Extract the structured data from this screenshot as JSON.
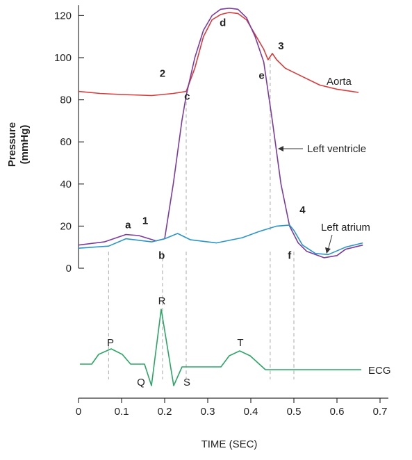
{
  "chart_data": {
    "type": "line",
    "ylabel_line1": "Pressure",
    "ylabel_line2": "(mmHg)",
    "xlabel": "TIME (SEC)",
    "xlim": [
      0,
      0.7
    ],
    "ylim": [
      0,
      120
    ],
    "x_ticks": [
      "0",
      "0.1",
      "0.2",
      "0.3",
      "0.4",
      "0.5",
      "0.6",
      "0.7"
    ],
    "y_ticks": [
      "0",
      "20",
      "40",
      "60",
      "80",
      "100",
      "120"
    ],
    "colors": {
      "aorta": "#d93a3a",
      "ventricle": "#7b3aa0",
      "atrium": "#2a95c8",
      "ecg": "#2aa566",
      "dash": "#b0b0b0"
    },
    "series": [
      {
        "name": "Aorta",
        "x": [
          0.0,
          0.05,
          0.1,
          0.17,
          0.22,
          0.25,
          0.27,
          0.29,
          0.31,
          0.33,
          0.35,
          0.37,
          0.39,
          0.41,
          0.43,
          0.44,
          0.45,
          0.46,
          0.48,
          0.52,
          0.56,
          0.6,
          0.65
        ],
        "y": [
          84,
          83,
          82.5,
          82,
          83,
          84,
          95,
          110,
          118,
          120.5,
          121.5,
          121,
          118,
          111,
          104,
          99,
          102,
          99,
          95,
          91,
          87,
          85,
          83.5
        ]
      },
      {
        "name": "Left ventricle",
        "x": [
          0.0,
          0.06,
          0.11,
          0.14,
          0.18,
          0.2,
          0.22,
          0.24,
          0.25,
          0.27,
          0.29,
          0.31,
          0.33,
          0.35,
          0.37,
          0.39,
          0.41,
          0.43,
          0.45,
          0.47,
          0.49,
          0.51,
          0.53,
          0.57,
          0.6,
          0.62,
          0.66
        ],
        "y": [
          11,
          12.5,
          16,
          15.5,
          13,
          14,
          40,
          70,
          82,
          100,
          113,
          120,
          123,
          123.5,
          123,
          119,
          110,
          98,
          70,
          40,
          20,
          12,
          8,
          5,
          6,
          9,
          11
        ]
      },
      {
        "name": "Left atrium",
        "x": [
          0.0,
          0.07,
          0.11,
          0.15,
          0.17,
          0.2,
          0.23,
          0.26,
          0.32,
          0.38,
          0.42,
          0.46,
          0.49,
          0.5,
          0.52,
          0.55,
          0.58,
          0.62,
          0.66
        ],
        "y": [
          9.5,
          10.5,
          14,
          13,
          12.5,
          14,
          16.5,
          13.5,
          12,
          14.5,
          17.5,
          20,
          20.5,
          18,
          11,
          7,
          6.5,
          10,
          12
        ]
      }
    ],
    "ecg_label": "ECG",
    "point_labels": [
      {
        "text": "a",
        "x": 0.115,
        "y": 19
      },
      {
        "text": "1",
        "x": 0.155,
        "y": 21
      },
      {
        "text": "b",
        "x": 0.193,
        "y": 4.5
      },
      {
        "text": "2",
        "x": 0.195,
        "y": 91
      },
      {
        "text": "c",
        "x": 0.252,
        "y": 80
      },
      {
        "text": "d",
        "x": 0.335,
        "y": 115
      },
      {
        "text": "e",
        "x": 0.425,
        "y": 90
      },
      {
        "text": "3",
        "x": 0.47,
        "y": 104
      },
      {
        "text": "4",
        "x": 0.52,
        "y": 26
      },
      {
        "text": "f",
        "x": 0.49,
        "y": 4.5
      }
    ],
    "ecg_labels": [
      "P",
      "Q",
      "R",
      "S",
      "T"
    ],
    "dashed_lines_x": [
      0.07,
      0.195,
      0.25,
      0.445,
      0.5
    ]
  }
}
